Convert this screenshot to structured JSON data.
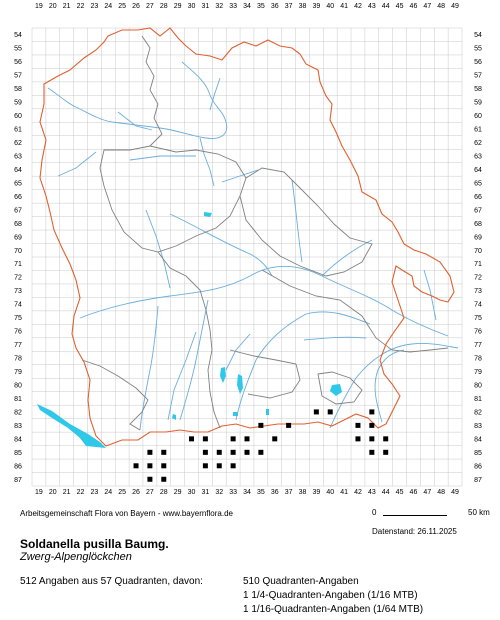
{
  "map": {
    "columns": [
      "19",
      "20",
      "21",
      "22",
      "23",
      "24",
      "25",
      "26",
      "27",
      "28",
      "29",
      "30",
      "31",
      "32",
      "33",
      "34",
      "35",
      "36",
      "37",
      "38",
      "39",
      "40",
      "41",
      "42",
      "43",
      "44",
      "45",
      "46",
      "47",
      "48",
      "49"
    ],
    "rows": [
      "54",
      "55",
      "56",
      "57",
      "58",
      "59",
      "60",
      "61",
      "62",
      "63",
      "64",
      "65",
      "66",
      "67",
      "68",
      "69",
      "70",
      "71",
      "72",
      "73",
      "74",
      "75",
      "76",
      "77",
      "78",
      "79",
      "80",
      "81",
      "82",
      "83",
      "84",
      "85",
      "86",
      "87"
    ],
    "colors": {
      "grid": "#c8c8c8",
      "state_border": "#e06030",
      "district_border": "#808080",
      "rivers": "#6aaedc",
      "lakes": "#30c8e8",
      "occurrence": "#000000"
    },
    "occurrences": [
      {
        "col": "39",
        "row": "82"
      },
      {
        "col": "40",
        "row": "82"
      },
      {
        "col": "43",
        "row": "82"
      },
      {
        "col": "35",
        "row": "83"
      },
      {
        "col": "37",
        "row": "83"
      },
      {
        "col": "42",
        "row": "83"
      },
      {
        "col": "43",
        "row": "83"
      },
      {
        "col": "30",
        "row": "84"
      },
      {
        "col": "31",
        "row": "84"
      },
      {
        "col": "33",
        "row": "84"
      },
      {
        "col": "34",
        "row": "84"
      },
      {
        "col": "36",
        "row": "84"
      },
      {
        "col": "42",
        "row": "84"
      },
      {
        "col": "43",
        "row": "84"
      },
      {
        "col": "44",
        "row": "84"
      },
      {
        "col": "27",
        "row": "85"
      },
      {
        "col": "28",
        "row": "85"
      },
      {
        "col": "31",
        "row": "85"
      },
      {
        "col": "32",
        "row": "85"
      },
      {
        "col": "33",
        "row": "85"
      },
      {
        "col": "34",
        "row": "85"
      },
      {
        "col": "35",
        "row": "85"
      },
      {
        "col": "43",
        "row": "85"
      },
      {
        "col": "44",
        "row": "85"
      },
      {
        "col": "26",
        "row": "86"
      },
      {
        "col": "27",
        "row": "86"
      },
      {
        "col": "28",
        "row": "86"
      },
      {
        "col": "31",
        "row": "86"
      },
      {
        "col": "32",
        "row": "86"
      },
      {
        "col": "33",
        "row": "86"
      },
      {
        "col": "27",
        "row": "87"
      },
      {
        "col": "28",
        "row": "87"
      }
    ]
  },
  "credit": "Arbeitsgemeinschaft Flora von Bayern - www.bayernflora.de",
  "scale": {
    "zero": "0",
    "km": "50 km"
  },
  "date": "Datenstand: 26.11.2025",
  "species": {
    "scientific": "Soldanella pusilla Baumg.",
    "common": "Zwerg-Alpenglöckchen"
  },
  "stats": {
    "summary": "512 Angaben aus 57 Quadranten, davon:",
    "line1": "510 Quadranten-Angaben",
    "line2": "1 1/4-Quadranten-Angaben (1/16 MTB)",
    "line3": "1 1/16-Quadranten-Angaben (1/64 MTB)"
  }
}
